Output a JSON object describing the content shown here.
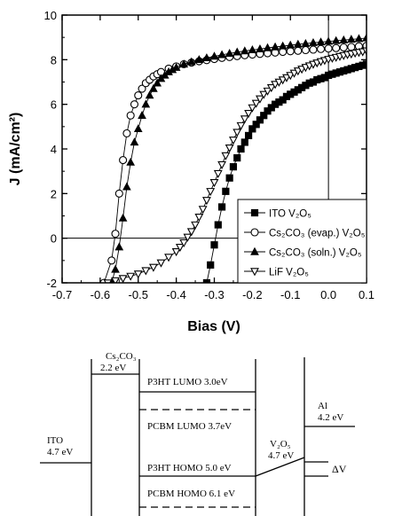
{
  "chart_data": [
    {
      "type": "line",
      "xlabel": "Bias (V)",
      "ylabel": "J (mA/cm²)",
      "xlim": [
        -0.7,
        0.1
      ],
      "ylim": [
        -2,
        10
      ],
      "x_ticks": [
        "-0.7",
        "-0.6",
        "-0.5",
        "-0.4",
        "-0.3",
        "-0.2",
        "-0.1",
        "0.0",
        "0.1"
      ],
      "y_ticks": [
        "-2",
        "0",
        "2",
        "4",
        "6",
        "8",
        "10"
      ],
      "reference_lines": {
        "x": 0.0,
        "y": 0.0
      },
      "legend_position": "bottom-right",
      "legend": [
        {
          "marker": "filled-square",
          "text": "ITO    V₂O₅"
        },
        {
          "marker": "open-circle",
          "text": "Cs₂CO₃ (evap.) V₂O₅"
        },
        {
          "marker": "filled-triangle",
          "text": "Cs₂CO₃ (soln.) V₂O₅"
        },
        {
          "marker": "open-triangle-down",
          "text": "LiF    V₂O₅"
        }
      ],
      "series": [
        {
          "marker": "filled-square",
          "x": [
            -0.32,
            -0.31,
            -0.3,
            -0.29,
            -0.28,
            -0.27,
            -0.26,
            -0.25,
            -0.24,
            -0.23,
            -0.22,
            -0.21,
            -0.2,
            -0.19,
            -0.18,
            -0.17,
            -0.16,
            -0.15,
            -0.14,
            -0.13,
            -0.12,
            -0.11,
            -0.1,
            -0.09,
            -0.08,
            -0.07,
            -0.06,
            -0.05,
            -0.04,
            -0.03,
            -0.02,
            -0.01,
            0.0,
            0.01,
            0.02,
            0.03,
            0.04,
            0.05,
            0.06,
            0.07,
            0.08,
            0.09,
            0.1
          ],
          "y": [
            -2.0,
            -1.2,
            -0.3,
            0.6,
            1.4,
            2.1,
            2.7,
            3.2,
            3.6,
            4.0,
            4.3,
            4.6,
            4.9,
            5.1,
            5.3,
            5.5,
            5.7,
            5.85,
            6.0,
            6.1,
            6.2,
            6.35,
            6.45,
            6.55,
            6.65,
            6.75,
            6.85,
            6.95,
            7.0,
            7.1,
            7.15,
            7.2,
            7.3,
            7.35,
            7.4,
            7.45,
            7.5,
            7.55,
            7.6,
            7.65,
            7.7,
            7.75,
            7.8
          ]
        },
        {
          "marker": "open-circle",
          "x": [
            -0.59,
            -0.57,
            -0.56,
            -0.55,
            -0.54,
            -0.53,
            -0.52,
            -0.51,
            -0.5,
            -0.49,
            -0.48,
            -0.47,
            -0.46,
            -0.45,
            -0.44,
            -0.42,
            -0.4,
            -0.38,
            -0.36,
            -0.34,
            -0.32,
            -0.3,
            -0.28,
            -0.26,
            -0.24,
            -0.22,
            -0.2,
            -0.18,
            -0.16,
            -0.14,
            -0.12,
            -0.1,
            -0.08,
            -0.06,
            -0.04,
            -0.02,
            0.0,
            0.02,
            0.04,
            0.06,
            0.08,
            0.1
          ],
          "y": [
            -2.0,
            -1.0,
            0.2,
            2.0,
            3.5,
            4.7,
            5.5,
            6.0,
            6.4,
            6.7,
            6.95,
            7.1,
            7.25,
            7.35,
            7.45,
            7.6,
            7.7,
            7.8,
            7.87,
            7.93,
            7.98,
            8.03,
            8.08,
            8.12,
            8.16,
            8.2,
            8.23,
            8.26,
            8.29,
            8.32,
            8.35,
            8.38,
            8.4,
            8.43,
            8.45,
            8.48,
            8.5,
            8.52,
            8.55,
            8.57,
            8.6,
            8.62
          ]
        },
        {
          "marker": "filled-triangle",
          "x": [
            -0.57,
            -0.56,
            -0.55,
            -0.54,
            -0.53,
            -0.52,
            -0.51,
            -0.5,
            -0.49,
            -0.48,
            -0.47,
            -0.46,
            -0.45,
            -0.44,
            -0.43,
            -0.42,
            -0.41,
            -0.4,
            -0.38,
            -0.36,
            -0.34,
            -0.32,
            -0.3,
            -0.28,
            -0.26,
            -0.24,
            -0.22,
            -0.2,
            -0.18,
            -0.16,
            -0.14,
            -0.12,
            -0.1,
            -0.08,
            -0.06,
            -0.04,
            -0.02,
            0.0,
            0.02,
            0.04,
            0.06,
            0.08,
            0.1
          ],
          "y": [
            -2.0,
            -1.4,
            -0.4,
            0.9,
            2.3,
            3.4,
            4.3,
            4.9,
            5.5,
            6.0,
            6.4,
            6.7,
            6.95,
            7.15,
            7.3,
            7.45,
            7.55,
            7.65,
            7.8,
            7.9,
            8.0,
            8.08,
            8.15,
            8.22,
            8.28,
            8.34,
            8.39,
            8.44,
            8.48,
            8.53,
            8.57,
            8.61,
            8.65,
            8.69,
            8.72,
            8.76,
            8.79,
            8.82,
            8.85,
            8.88,
            8.91,
            8.94,
            8.97
          ]
        },
        {
          "marker": "open-triangle-down",
          "x": [
            -0.58,
            -0.56,
            -0.54,
            -0.52,
            -0.5,
            -0.48,
            -0.46,
            -0.44,
            -0.42,
            -0.4,
            -0.39,
            -0.38,
            -0.37,
            -0.36,
            -0.35,
            -0.34,
            -0.33,
            -0.32,
            -0.31,
            -0.3,
            -0.29,
            -0.28,
            -0.27,
            -0.26,
            -0.25,
            -0.24,
            -0.23,
            -0.22,
            -0.21,
            -0.2,
            -0.19,
            -0.18,
            -0.17,
            -0.16,
            -0.15,
            -0.14,
            -0.13,
            -0.12,
            -0.11,
            -0.1,
            -0.09,
            -0.08,
            -0.07,
            -0.06,
            -0.05,
            -0.04,
            -0.03,
            -0.02,
            -0.01,
            0.0,
            0.01,
            0.02,
            0.03,
            0.04,
            0.05,
            0.06,
            0.07,
            0.08,
            0.09,
            0.1
          ],
          "y": [
            -2.0,
            -1.9,
            -1.8,
            -1.7,
            -1.6,
            -1.45,
            -1.3,
            -1.1,
            -0.85,
            -0.6,
            -0.4,
            -0.2,
            0.05,
            0.3,
            0.6,
            0.95,
            1.3,
            1.7,
            2.1,
            2.5,
            2.9,
            3.3,
            3.7,
            4.05,
            4.4,
            4.75,
            5.05,
            5.35,
            5.6,
            5.85,
            6.05,
            6.25,
            6.45,
            6.6,
            6.75,
            6.9,
            7.0,
            7.1,
            7.2,
            7.3,
            7.4,
            7.5,
            7.58,
            7.66,
            7.73,
            7.8,
            7.86,
            7.92,
            7.97,
            8.02,
            8.07,
            8.11,
            8.15,
            8.19,
            8.23,
            8.26,
            8.3,
            8.33,
            8.36,
            8.4
          ]
        }
      ]
    }
  ],
  "energy_diagram": {
    "labels": [
      {
        "lines": [
          "Cs₂CO₃",
          "2.2 eV"
        ]
      },
      {
        "lines": [
          "ITO",
          "4.7 eV"
        ]
      },
      {
        "lines": [
          "P3HT LUMO 3.0eV"
        ]
      },
      {
        "lines": [
          "PCBM LUMO 3.7eV"
        ]
      },
      {
        "lines": [
          "P3HT HOMO 5.0 eV"
        ]
      },
      {
        "lines": [
          "PCBM HOMO 6.1 eV"
        ]
      },
      {
        "lines": [
          "V₂O₅",
          "4.7 eV"
        ]
      },
      {
        "lines": [
          "Al",
          "4.2 eV"
        ]
      },
      {
        "lines": [
          "ΔV"
        ]
      }
    ]
  }
}
